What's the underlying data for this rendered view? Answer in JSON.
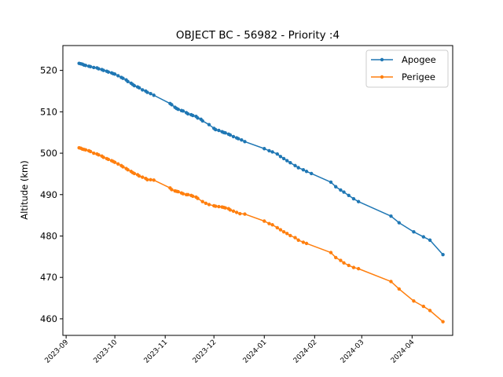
{
  "chart_data": {
    "type": "line",
    "title": "OBJECT BC - 56982 - Priority :4",
    "xlabel": "",
    "ylabel": "Altitude (km)",
    "xlim": [
      "2023-08-30",
      "2024-04-26"
    ],
    "ylim": [
      456.0,
      526.0
    ],
    "xticks": [
      "2023-09",
      "2023-10",
      "2023-11",
      "2023-12",
      "2024-01",
      "2024-02",
      "2024-03",
      "2024-04"
    ],
    "yticks": [
      460,
      470,
      480,
      490,
      500,
      510,
      520
    ],
    "grid": false,
    "legend": "top-right",
    "series": [
      {
        "name": "Apogee",
        "color": "#1f77b4",
        "marker": "circle",
        "points": [
          [
            "2023-09-09",
            521.7
          ],
          [
            "2023-09-10",
            521.6
          ],
          [
            "2023-09-11",
            521.5
          ],
          [
            "2023-09-12",
            521.3
          ],
          [
            "2023-09-13",
            521.2
          ],
          [
            "2023-09-15",
            521.0
          ],
          [
            "2023-09-16",
            520.9
          ],
          [
            "2023-09-18",
            520.7
          ],
          [
            "2023-09-20",
            520.6
          ],
          [
            "2023-09-21",
            520.4
          ],
          [
            "2023-09-23",
            520.2
          ],
          [
            "2023-09-24",
            520.0
          ],
          [
            "2023-09-26",
            519.8
          ],
          [
            "2023-09-27",
            519.6
          ],
          [
            "2023-09-29",
            519.4
          ],
          [
            "2023-09-30",
            519.2
          ],
          [
            "2023-10-01",
            519.1
          ],
          [
            "2023-10-03",
            518.7
          ],
          [
            "2023-10-05",
            518.3
          ],
          [
            "2023-10-06",
            518.1
          ],
          [
            "2023-10-08",
            517.7
          ],
          [
            "2023-10-09",
            517.3
          ],
          [
            "2023-10-11",
            516.9
          ],
          [
            "2023-10-12",
            516.6
          ],
          [
            "2023-10-13",
            516.3
          ],
          [
            "2023-10-15",
            516.0
          ],
          [
            "2023-10-16",
            515.8
          ],
          [
            "2023-10-18",
            515.3
          ],
          [
            "2023-10-20",
            515.0
          ],
          [
            "2023-10-21",
            514.7
          ],
          [
            "2023-10-23",
            514.4
          ],
          [
            "2023-10-25",
            514.0
          ],
          [
            "2023-11-04",
            512.0
          ],
          [
            "2023-11-05",
            511.7
          ],
          [
            "2023-11-07",
            511.1
          ],
          [
            "2023-11-08",
            510.8
          ],
          [
            "2023-11-09",
            510.6
          ],
          [
            "2023-11-11",
            510.3
          ],
          [
            "2023-11-12",
            510.2
          ],
          [
            "2023-11-14",
            509.8
          ],
          [
            "2023-11-15",
            509.5
          ],
          [
            "2023-11-17",
            509.3
          ],
          [
            "2023-11-18",
            509.1
          ],
          [
            "2023-11-20",
            508.9
          ],
          [
            "2023-11-21",
            508.5
          ],
          [
            "2023-11-23",
            508.2
          ],
          [
            "2023-11-24",
            507.8
          ],
          [
            "2023-11-28",
            506.9
          ],
          [
            "2023-12-01",
            506.0
          ],
          [
            "2023-12-02",
            505.7
          ],
          [
            "2023-12-04",
            505.5
          ],
          [
            "2023-12-06",
            505.2
          ],
          [
            "2023-12-07",
            505.0
          ],
          [
            "2023-12-08",
            504.9
          ],
          [
            "2023-12-10",
            504.6
          ],
          [
            "2023-12-11",
            504.4
          ],
          [
            "2023-12-13",
            504.0
          ],
          [
            "2023-12-15",
            503.7
          ],
          [
            "2023-12-16",
            503.5
          ],
          [
            "2023-12-18",
            503.2
          ],
          [
            "2023-12-20",
            502.8
          ],
          [
            "2024-01-01",
            501.1
          ],
          [
            "2024-01-04",
            500.6
          ],
          [
            "2024-01-06",
            500.3
          ],
          [
            "2024-01-09",
            499.8
          ],
          [
            "2024-01-11",
            499.2
          ],
          [
            "2024-01-13",
            498.7
          ],
          [
            "2024-01-15",
            498.2
          ],
          [
            "2024-01-17",
            497.7
          ],
          [
            "2024-01-20",
            497.0
          ],
          [
            "2024-01-22",
            496.5
          ],
          [
            "2024-01-25",
            496.0
          ],
          [
            "2024-01-27",
            495.6
          ],
          [
            "2024-01-30",
            495.1
          ],
          [
            "2024-02-11",
            493.0
          ],
          [
            "2024-02-14",
            491.9
          ],
          [
            "2024-02-17",
            491.1
          ],
          [
            "2024-02-19",
            490.6
          ],
          [
            "2024-02-22",
            489.8
          ],
          [
            "2024-02-25",
            489.0
          ],
          [
            "2024-02-28",
            488.3
          ],
          [
            "2024-03-19",
            484.8
          ],
          [
            "2024-03-24",
            483.2
          ],
          [
            "2024-04-02",
            481.0
          ],
          [
            "2024-04-08",
            479.8
          ],
          [
            "2024-04-12",
            479.0
          ],
          [
            "2024-04-20",
            475.5
          ]
        ]
      },
      {
        "name": "Perigee",
        "color": "#ff7f0e",
        "marker": "circle",
        "points": [
          [
            "2023-09-09",
            501.3
          ],
          [
            "2023-09-10",
            501.2
          ],
          [
            "2023-09-11",
            501.0
          ],
          [
            "2023-09-12",
            500.9
          ],
          [
            "2023-09-13",
            500.8
          ],
          [
            "2023-09-15",
            500.6
          ],
          [
            "2023-09-16",
            500.4
          ],
          [
            "2023-09-18",
            500.0
          ],
          [
            "2023-09-20",
            499.8
          ],
          [
            "2023-09-21",
            499.6
          ],
          [
            "2023-09-23",
            499.3
          ],
          [
            "2023-09-24",
            499.0
          ],
          [
            "2023-09-26",
            498.7
          ],
          [
            "2023-09-27",
            498.5
          ],
          [
            "2023-09-29",
            498.2
          ],
          [
            "2023-09-30",
            498.0
          ],
          [
            "2023-10-01",
            497.8
          ],
          [
            "2023-10-03",
            497.4
          ],
          [
            "2023-10-05",
            497.0
          ],
          [
            "2023-10-06",
            496.7
          ],
          [
            "2023-10-08",
            496.3
          ],
          [
            "2023-10-09",
            496.0
          ],
          [
            "2023-10-11",
            495.6
          ],
          [
            "2023-10-12",
            495.3
          ],
          [
            "2023-10-13",
            495.1
          ],
          [
            "2023-10-15",
            494.8
          ],
          [
            "2023-10-16",
            494.5
          ],
          [
            "2023-10-18",
            494.2
          ],
          [
            "2023-10-20",
            493.9
          ],
          [
            "2023-10-21",
            493.6
          ],
          [
            "2023-10-23",
            493.6
          ],
          [
            "2023-10-25",
            493.5
          ],
          [
            "2023-11-04",
            491.6
          ],
          [
            "2023-11-05",
            491.2
          ],
          [
            "2023-11-07",
            490.9
          ],
          [
            "2023-11-08",
            490.8
          ],
          [
            "2023-11-09",
            490.7
          ],
          [
            "2023-11-11",
            490.4
          ],
          [
            "2023-11-12",
            490.2
          ],
          [
            "2023-11-14",
            490.0
          ],
          [
            "2023-11-15",
            490.0
          ],
          [
            "2023-11-17",
            489.8
          ],
          [
            "2023-11-18",
            489.6
          ],
          [
            "2023-11-20",
            489.4
          ],
          [
            "2023-11-21",
            489.1
          ],
          [
            "2023-11-24",
            488.3
          ],
          [
            "2023-11-26",
            487.9
          ],
          [
            "2023-11-28",
            487.6
          ],
          [
            "2023-12-01",
            487.3
          ],
          [
            "2023-12-02",
            487.2
          ],
          [
            "2023-12-04",
            487.1
          ],
          [
            "2023-12-06",
            487.0
          ],
          [
            "2023-12-07",
            486.9
          ],
          [
            "2023-12-08",
            486.8
          ],
          [
            "2023-12-10",
            486.6
          ],
          [
            "2023-12-11",
            486.3
          ],
          [
            "2023-12-13",
            486.0
          ],
          [
            "2023-12-15",
            485.7
          ],
          [
            "2023-12-17",
            485.4
          ],
          [
            "2023-12-20",
            485.3
          ],
          [
            "2024-01-01",
            483.6
          ],
          [
            "2024-01-04",
            483.0
          ],
          [
            "2024-01-06",
            482.7
          ],
          [
            "2024-01-09",
            482.0
          ],
          [
            "2024-01-11",
            481.5
          ],
          [
            "2024-01-13",
            481.0
          ],
          [
            "2024-01-15",
            480.6
          ],
          [
            "2024-01-17",
            480.1
          ],
          [
            "2024-01-20",
            479.6
          ],
          [
            "2024-01-22",
            479.0
          ],
          [
            "2024-01-25",
            478.5
          ],
          [
            "2024-01-27",
            478.2
          ],
          [
            "2024-02-11",
            476.0
          ],
          [
            "2024-02-14",
            474.8
          ],
          [
            "2024-02-17",
            474.1
          ],
          [
            "2024-02-19",
            473.5
          ],
          [
            "2024-02-22",
            472.9
          ],
          [
            "2024-02-25",
            472.4
          ],
          [
            "2024-02-28",
            472.1
          ],
          [
            "2024-03-19",
            469.0
          ],
          [
            "2024-03-24",
            467.2
          ],
          [
            "2024-04-02",
            464.3
          ],
          [
            "2024-04-08",
            463.0
          ],
          [
            "2024-04-12",
            462.0
          ],
          [
            "2024-04-20",
            459.3
          ]
        ]
      }
    ]
  }
}
